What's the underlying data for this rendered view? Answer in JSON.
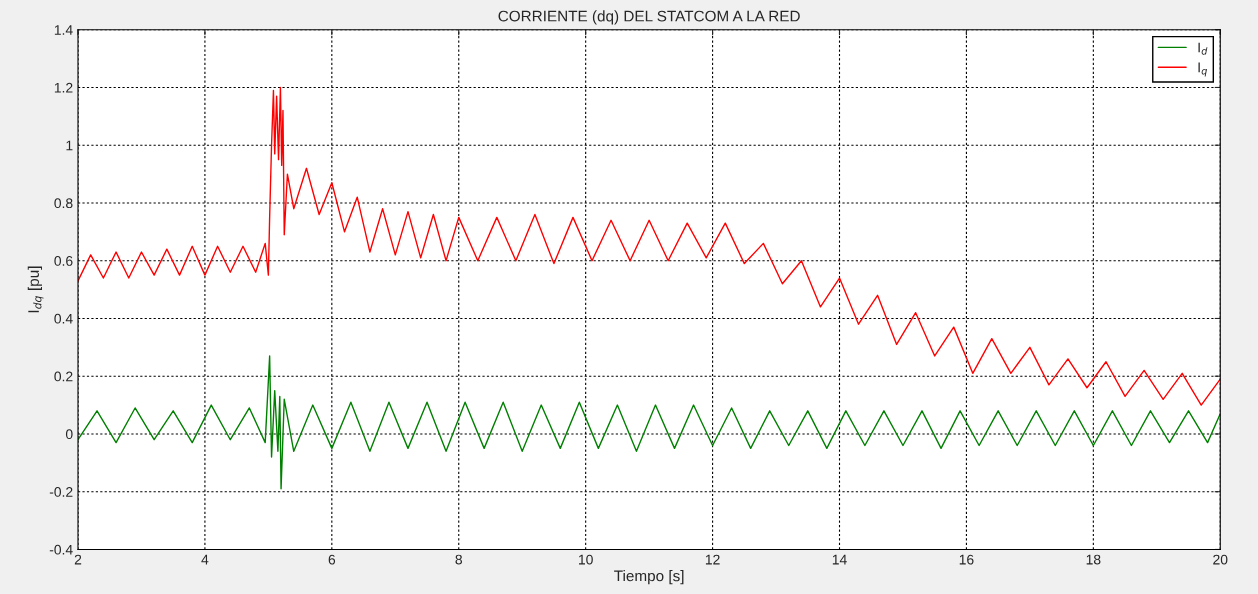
{
  "chart_data": {
    "type": "line",
    "title": "CORRIENTE (dq) DEL STATCOM A LA RED",
    "xlabel": "Tiempo [s]",
    "ylabel": "I$_{dq}$ [pu]",
    "xlim": [
      2,
      20
    ],
    "xticks": [
      2,
      4,
      6,
      8,
      10,
      12,
      14,
      16,
      18,
      20
    ],
    "ylim": [
      -0.4,
      1.4
    ],
    "yticks": [
      -0.4,
      -0.2,
      0,
      0.2,
      0.4,
      0.6,
      0.8,
      1,
      1.2,
      1.4
    ],
    "grid": true,
    "legend": "top right",
    "line_style": "solid",
    "marker": "none",
    "series": [
      {
        "name": "I$_{d}$",
        "color": "#008000",
        "x": [
          2.0,
          2.3,
          2.6,
          2.9,
          3.2,
          3.5,
          3.8,
          4.1,
          4.4,
          4.7,
          4.95,
          5.02,
          5.05,
          5.1,
          5.15,
          5.18,
          5.2,
          5.25,
          5.4,
          5.7,
          6.0,
          6.3,
          6.6,
          6.9,
          7.2,
          7.5,
          7.8,
          8.1,
          8.4,
          8.7,
          9.0,
          9.3,
          9.6,
          9.9,
          10.2,
          10.5,
          10.8,
          11.1,
          11.4,
          11.7,
          12.0,
          12.3,
          12.6,
          12.9,
          13.2,
          13.5,
          13.8,
          14.1,
          14.4,
          14.7,
          15.0,
          15.3,
          15.6,
          15.9,
          16.2,
          16.5,
          16.8,
          17.1,
          17.4,
          17.7,
          18.0,
          18.3,
          18.6,
          18.9,
          19.2,
          19.5,
          19.8,
          20.0
        ],
        "values": [
          -0.02,
          0.08,
          -0.03,
          0.09,
          -0.02,
          0.08,
          -0.03,
          0.1,
          -0.02,
          0.09,
          -0.03,
          0.27,
          -0.08,
          0.15,
          -0.06,
          0.13,
          -0.19,
          0.12,
          -0.06,
          0.1,
          -0.05,
          0.11,
          -0.06,
          0.11,
          -0.05,
          0.11,
          -0.06,
          0.11,
          -0.05,
          0.11,
          -0.06,
          0.1,
          -0.05,
          0.11,
          -0.05,
          0.1,
          -0.06,
          0.1,
          -0.05,
          0.1,
          -0.04,
          0.09,
          -0.05,
          0.08,
          -0.04,
          0.08,
          -0.05,
          0.08,
          -0.04,
          0.08,
          -0.04,
          0.08,
          -0.05,
          0.08,
          -0.04,
          0.08,
          -0.04,
          0.08,
          -0.04,
          0.08,
          -0.04,
          0.08,
          -0.04,
          0.08,
          -0.03,
          0.08,
          -0.03,
          0.07
        ]
      },
      {
        "name": "I$_{q}$",
        "color": "#ff0000",
        "x": [
          2.0,
          2.2,
          2.4,
          2.6,
          2.8,
          3.0,
          3.2,
          3.4,
          3.6,
          3.8,
          4.0,
          4.2,
          4.4,
          4.6,
          4.8,
          4.95,
          5.0,
          5.02,
          5.05,
          5.08,
          5.1,
          5.13,
          5.16,
          5.19,
          5.21,
          5.23,
          5.25,
          5.3,
          5.4,
          5.6,
          5.8,
          6.0,
          6.2,
          6.4,
          6.6,
          6.8,
          7.0,
          7.2,
          7.4,
          7.6,
          7.8,
          8.0,
          8.3,
          8.6,
          8.9,
          9.2,
          9.5,
          9.8,
          10.1,
          10.4,
          10.7,
          11.0,
          11.3,
          11.6,
          11.9,
          12.2,
          12.5,
          12.8,
          13.1,
          13.4,
          13.7,
          14.0,
          14.3,
          14.6,
          14.9,
          15.2,
          15.5,
          15.8,
          16.1,
          16.4,
          16.7,
          17.0,
          17.3,
          17.6,
          17.9,
          18.2,
          18.5,
          18.8,
          19.1,
          19.4,
          19.7,
          20.0
        ],
        "values": [
          0.53,
          0.62,
          0.54,
          0.63,
          0.54,
          0.63,
          0.55,
          0.64,
          0.55,
          0.65,
          0.55,
          0.65,
          0.56,
          0.65,
          0.56,
          0.66,
          0.55,
          0.75,
          1.0,
          1.19,
          0.97,
          1.17,
          0.95,
          1.2,
          0.93,
          1.12,
          0.69,
          0.9,
          0.78,
          0.92,
          0.76,
          0.87,
          0.7,
          0.82,
          0.63,
          0.78,
          0.62,
          0.77,
          0.61,
          0.76,
          0.6,
          0.75,
          0.6,
          0.75,
          0.6,
          0.76,
          0.59,
          0.75,
          0.6,
          0.74,
          0.6,
          0.74,
          0.6,
          0.73,
          0.61,
          0.73,
          0.59,
          0.66,
          0.52,
          0.6,
          0.44,
          0.54,
          0.38,
          0.48,
          0.31,
          0.42,
          0.27,
          0.37,
          0.21,
          0.33,
          0.21,
          0.3,
          0.17,
          0.26,
          0.16,
          0.25,
          0.13,
          0.22,
          0.12,
          0.21,
          0.1,
          0.19
        ]
      }
    ]
  }
}
